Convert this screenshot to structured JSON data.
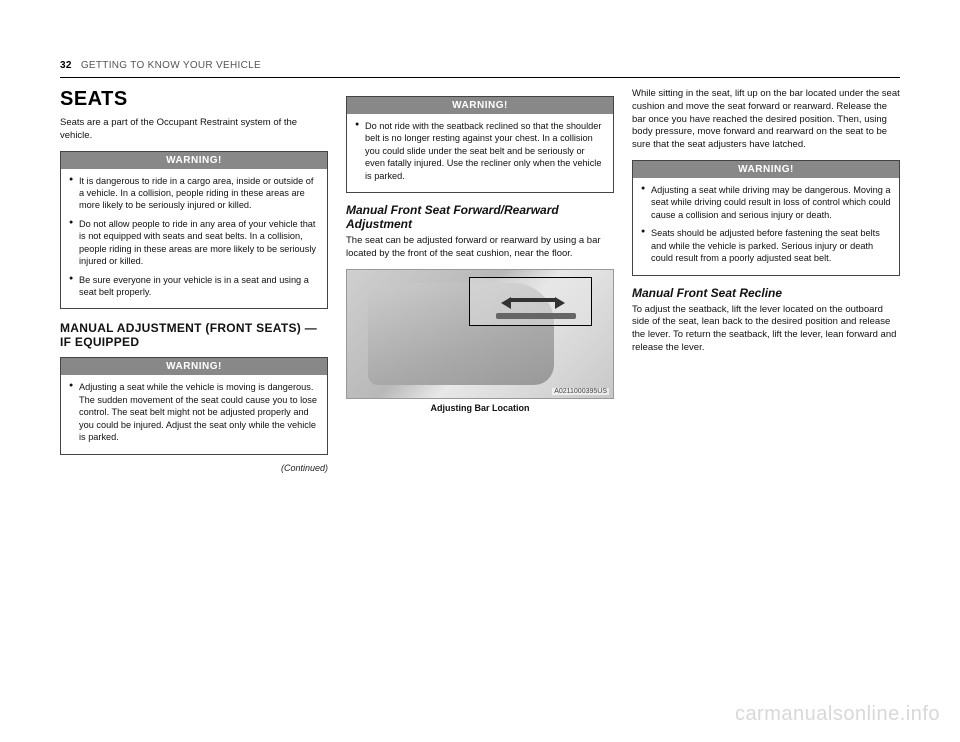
{
  "header": {
    "page_number": "32",
    "section": "GETTING TO KNOW YOUR VEHICLE"
  },
  "col1": {
    "title": "SEATS",
    "intro": "Seats are a part of the Occupant Restraint system of the vehicle.",
    "warning1": {
      "label": "WARNING!",
      "items": [
        "It is dangerous to ride in a cargo area, inside or outside of a vehicle. In a collision, people riding in these areas are more likely to be seriously injured or killed.",
        "Do not allow people to ride in any area of your vehicle that is not equipped with seats and seat belts. In a collision, people riding in these areas are more likely to be seriously injured or killed.",
        "Be sure everyone in your vehicle is in a seat and using a seat belt properly."
      ]
    },
    "h2": "MANUAL ADJUSTMENT (FRONT SEATS) — IF EQUIPPED",
    "warning2": {
      "label": "WARNING!",
      "items": [
        "Adjusting a seat while the vehicle is moving is dangerous. The sudden movement of the seat could cause you to lose control. The seat belt might not be adjusted properly and you could be injured. Adjust the seat only while the vehicle is parked."
      ]
    },
    "continued": "(Continued)"
  },
  "col2": {
    "warning3": {
      "label": "WARNING!",
      "items": [
        "Do not ride with the seatback reclined so that the shoulder belt is no longer resting against your chest. In a collision you could slide under the seat belt and be seriously or even fatally injured. Use the recliner only when the vehicle is parked."
      ]
    },
    "h3a": "Manual Front Seat Forward/Rearward Adjustment",
    "body1": "The seat can be adjusted forward or rearward by using a bar located by the front of the seat cushion, near the floor.",
    "figure": {
      "code": "A0211000395US",
      "caption": "Adjusting Bar Location"
    }
  },
  "col3": {
    "body1": "While sitting in the seat, lift up on the bar located under the seat cushion and move the seat forward or rearward. Release the bar once you have reached the desired position. Then, using body pressure, move forward and rearward on the seat to be sure that the seat adjusters have latched.",
    "warning4": {
      "label": "WARNING!",
      "items": [
        "Adjusting a seat while driving may be dangerous. Moving a seat while driving could result in loss of control which could cause a collision and serious injury or death.",
        "Seats should be adjusted before fastening the seat belts and while the vehicle is parked. Serious injury or death could result from a poorly adjusted seat belt."
      ]
    },
    "h3b": "Manual Front Seat Recline",
    "body2": "To adjust the seatback, lift the lever located on the outboard side of the seat, lean back to the desired position and release the lever. To return the seatback, lift the lever, lean forward and release the lever."
  },
  "watermark": "carmanualsonline.info"
}
